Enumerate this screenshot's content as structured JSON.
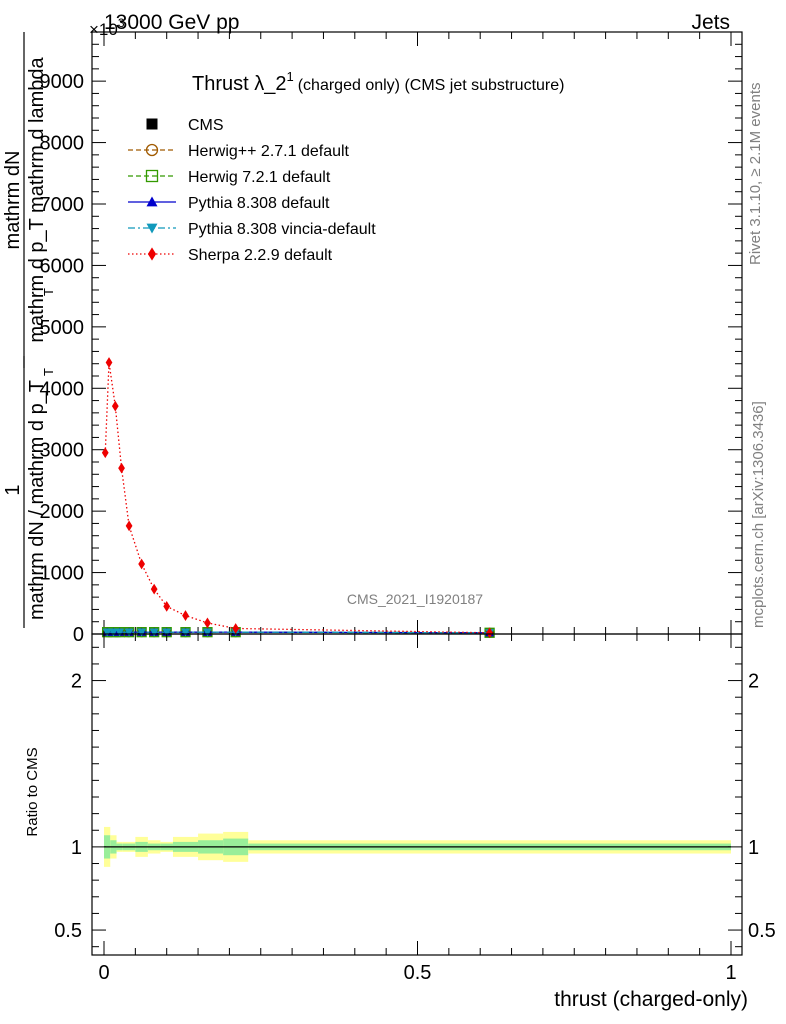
{
  "header": {
    "energy_label": "13000 GeV pp",
    "process_label": "Jets",
    "exponent_label": "×10",
    "exponent_power": "3"
  },
  "side_labels": {
    "rivet": "Rivet 3.1.10, ≥ 2.1M events",
    "mcplots": "mcplots.cern.ch [arXiv:1306.3436]"
  },
  "chart_data": [
    {
      "type": "line",
      "title_main": "Thrust λ_2",
      "title_sup": "1",
      "title_tail": "(charged only) (CMS jet substructure)",
      "watermark": "CMS_2021_I1920187",
      "ylabel_num": "mathrm dN",
      "ylabel_den": "mathrm d p_T mathrm d lambda",
      "ylabel_den_sub": "T",
      "ylabel_frac2_num": "1",
      "ylabel_frac2_den": "mathrm dN / mathrm d p_T",
      "ylabel_frac2_den_sub": "T",
      "xlim": [
        0,
        1
      ],
      "ylim": [
        0,
        9800
      ],
      "y_scale_factor": 1000,
      "yticks": [
        0,
        1000,
        2000,
        3000,
        4000,
        5000,
        6000,
        7000,
        8000,
        9000
      ],
      "ytick_labels": [
        "0",
        "1000",
        "2000",
        "3000",
        "4000",
        "5000",
        "6000",
        "7000",
        "8000",
        "9000"
      ],
      "legend_position": "top-left",
      "series": [
        {
          "name": "CMS",
          "color": "#000000",
          "marker": "square-filled",
          "style": "none",
          "x": [
            0.005,
            0.015,
            0.025,
            0.04,
            0.06,
            0.08,
            0.1,
            0.13,
            0.165,
            0.21,
            0.615
          ],
          "y": [
            30,
            30,
            30,
            30,
            30,
            30,
            30,
            30,
            30,
            30,
            20
          ]
        },
        {
          "name": "Herwig++ 2.7.1 default",
          "color": "#a05a00",
          "marker": "circle-open",
          "style": "dashed",
          "x": [
            0.005,
            0.015,
            0.025,
            0.04,
            0.06,
            0.08,
            0.1,
            0.13,
            0.165,
            0.21,
            0.615
          ],
          "y": [
            30,
            30,
            30,
            30,
            30,
            30,
            30,
            30,
            30,
            30,
            20
          ]
        },
        {
          "name": "Herwig 7.2.1 default",
          "color": "#339900",
          "marker": "square-open",
          "style": "dashed",
          "x": [
            0.005,
            0.015,
            0.025,
            0.04,
            0.06,
            0.08,
            0.1,
            0.13,
            0.165,
            0.21,
            0.615
          ],
          "y": [
            30,
            30,
            30,
            30,
            30,
            30,
            30,
            30,
            30,
            30,
            20
          ]
        },
        {
          "name": "Pythia 8.308 default",
          "color": "#0000cc",
          "marker": "triangle-up-filled",
          "style": "solid",
          "x": [
            0.005,
            0.015,
            0.025,
            0.04,
            0.06,
            0.08,
            0.1,
            0.13,
            0.165,
            0.21,
            0.615
          ],
          "y": [
            30,
            30,
            30,
            30,
            30,
            30,
            30,
            30,
            30,
            30,
            20
          ]
        },
        {
          "name": "Pythia 8.308 vincia-default",
          "color": "#1199bb",
          "marker": "triangle-down-filled",
          "style": "dashdot",
          "x": [
            0.005,
            0.015,
            0.025,
            0.04,
            0.06,
            0.08,
            0.1,
            0.13,
            0.165,
            0.21,
            0.615
          ],
          "y": [
            30,
            30,
            30,
            30,
            30,
            30,
            30,
            30,
            30,
            30,
            20
          ]
        },
        {
          "name": "Sherpa 2.2.9 default",
          "color": "#ee0000",
          "marker": "diamond-filled",
          "style": "dotted",
          "x": [
            0.002,
            0.008,
            0.018,
            0.028,
            0.04,
            0.06,
            0.08,
            0.1,
            0.13,
            0.165,
            0.21,
            0.615
          ],
          "y": [
            2950,
            4420,
            3710,
            2700,
            1760,
            1140,
            730,
            450,
            300,
            180,
            90,
            20
          ]
        }
      ]
    },
    {
      "type": "line",
      "ylabel": "Ratio to CMS",
      "xlabel": "thrust (charged-only)",
      "xlim": [
        0,
        1
      ],
      "ylim": [
        0.35,
        2.28
      ],
      "yticks": [
        0.5,
        1,
        2
      ],
      "ytick_labels": [
        "0.5",
        "1",
        "2"
      ],
      "xticks": [
        0,
        0.5,
        1
      ],
      "xtick_labels": [
        "0",
        "0.5",
        "1"
      ],
      "reference": 1,
      "bands": {
        "edges": [
          0,
          0.01,
          0.02,
          0.03,
          0.05,
          0.07,
          0.09,
          0.11,
          0.15,
          0.19,
          0.23,
          1.0
        ],
        "yellow_halfwidth": [
          0.12,
          0.07,
          0.03,
          0.03,
          0.06,
          0.04,
          0.03,
          0.06,
          0.08,
          0.09,
          0.04
        ],
        "green_halfwidth": [
          0.07,
          0.04,
          0.02,
          0.02,
          0.03,
          0.02,
          0.02,
          0.03,
          0.04,
          0.05,
          0.02
        ],
        "yellow_color": "#ffff99",
        "green_color": "#99ee99"
      }
    }
  ]
}
